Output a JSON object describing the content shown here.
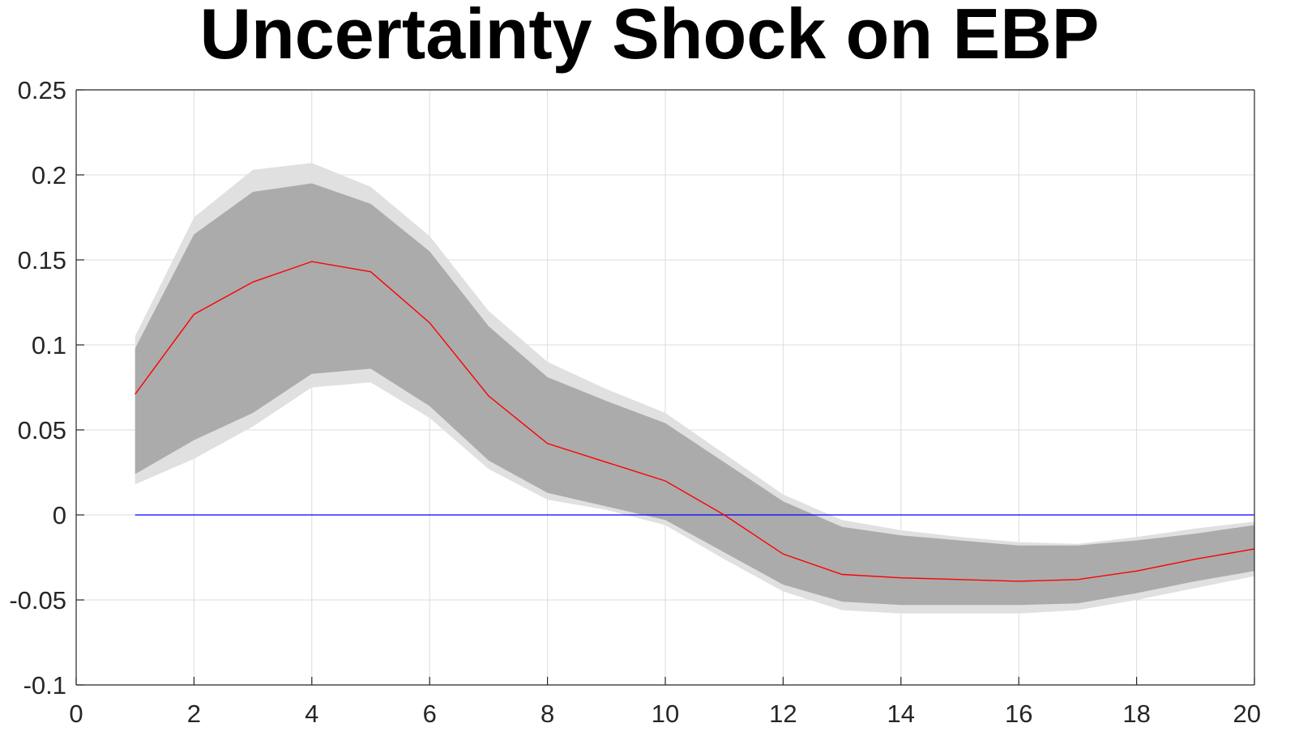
{
  "chart_data": {
    "type": "line",
    "title": "Uncertainty Shock on EBP",
    "xlabel": "",
    "ylabel": "",
    "xlim": [
      0,
      20
    ],
    "ylim": [
      -0.1,
      0.25
    ],
    "grid": true,
    "x_ticks": [
      0,
      2,
      4,
      6,
      8,
      10,
      12,
      14,
      16,
      18,
      20
    ],
    "x_tick_labels": [
      "0",
      "2",
      "4",
      "6",
      "8",
      "10",
      "12",
      "14",
      "16",
      "18",
      "20"
    ],
    "y_ticks": [
      -0.1,
      -0.05,
      0,
      0.05,
      0.1,
      0.15,
      0.2,
      0.25
    ],
    "y_tick_labels": [
      "-0.1",
      "-0.05",
      "0",
      "0.05",
      "0.1",
      "0.15",
      "0.2",
      "0.25"
    ],
    "x": [
      1,
      2,
      3,
      4,
      5,
      6,
      7,
      8,
      9,
      10,
      11,
      12,
      13,
      14,
      15,
      16,
      17,
      18,
      19,
      20
    ],
    "series": [
      {
        "role": "outer-band-upper",
        "color": "#e0e0e0",
        "values": [
          0.105,
          0.175,
          0.203,
          0.207,
          0.193,
          0.164,
          0.12,
          0.09,
          0.074,
          0.06,
          0.036,
          0.012,
          -0.003,
          -0.009,
          -0.013,
          -0.016,
          -0.017,
          -0.013,
          -0.008,
          -0.004
        ]
      },
      {
        "role": "outer-band-lower",
        "color": "#e0e0e0",
        "values": [
          0.018,
          0.033,
          0.052,
          0.075,
          0.078,
          0.057,
          0.027,
          0.009,
          0.003,
          -0.006,
          -0.026,
          -0.045,
          -0.056,
          -0.058,
          -0.058,
          -0.058,
          -0.056,
          -0.05,
          -0.043,
          -0.036
        ]
      },
      {
        "role": "inner-band-upper",
        "color": "#ababab",
        "values": [
          0.098,
          0.165,
          0.19,
          0.195,
          0.183,
          0.155,
          0.111,
          0.081,
          0.067,
          0.054,
          0.031,
          0.008,
          -0.007,
          -0.012,
          -0.015,
          -0.018,
          -0.018,
          -0.015,
          -0.011,
          -0.006
        ]
      },
      {
        "role": "inner-band-lower",
        "color": "#ababab",
        "values": [
          0.024,
          0.044,
          0.06,
          0.083,
          0.086,
          0.064,
          0.032,
          0.013,
          0.005,
          -0.003,
          -0.022,
          -0.041,
          -0.051,
          -0.053,
          -0.053,
          -0.053,
          -0.052,
          -0.046,
          -0.039,
          -0.033
        ]
      },
      {
        "role": "median",
        "color": "#ff0000",
        "values": [
          0.071,
          0.118,
          0.137,
          0.149,
          0.143,
          0.113,
          0.07,
          0.042,
          0.031,
          0.02,
          0.0,
          -0.023,
          -0.035,
          -0.037,
          -0.038,
          -0.039,
          -0.038,
          -0.033,
          -0.026,
          -0.02
        ]
      },
      {
        "role": "zero-line",
        "color": "#0000ff",
        "values": [
          0,
          0,
          0,
          0,
          0,
          0,
          0,
          0,
          0,
          0,
          0,
          0,
          0,
          0,
          0,
          0,
          0,
          0,
          0,
          0
        ]
      }
    ]
  }
}
